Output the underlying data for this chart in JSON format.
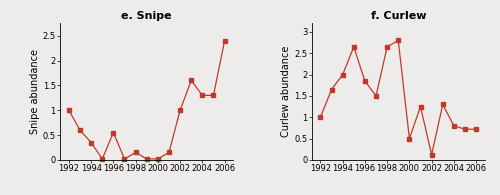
{
  "snipe": {
    "title": "e. Snipe",
    "ylabel": "Snipe abundance",
    "years": [
      1992,
      1993,
      1994,
      1995,
      1996,
      1997,
      1998,
      1999,
      2000,
      2001,
      2002,
      2003,
      2004,
      2005,
      2006
    ],
    "values": [
      1.0,
      0.6,
      0.35,
      0.02,
      0.55,
      0.02,
      0.15,
      0.02,
      0.02,
      0.15,
      1.0,
      1.6,
      1.3,
      1.3,
      2.4
    ],
    "ylim": [
      0,
      2.75
    ],
    "yticks": [
      0,
      0.5,
      1.0,
      1.5,
      2.0,
      2.5
    ]
  },
  "curlew": {
    "title": "f. Curlew",
    "ylabel": "Curlew abundance",
    "years": [
      1992,
      1993,
      1994,
      1995,
      1996,
      1997,
      1998,
      1999,
      2000,
      2001,
      2002,
      2003,
      2004,
      2005,
      2006
    ],
    "values": [
      1.0,
      1.65,
      2.0,
      2.65,
      1.85,
      1.5,
      2.65,
      2.8,
      0.5,
      1.25,
      0.12,
      1.3,
      0.8,
      0.72,
      0.72
    ],
    "ylim": [
      0,
      3.2
    ],
    "yticks": [
      0,
      0.5,
      1.0,
      1.5,
      2.0,
      2.5,
      3.0
    ]
  },
  "line_color": "#c0392b",
  "marker": "s",
  "markersize": 2.8,
  "linewidth": 0.9,
  "background_color": "#edecea",
  "xticks": [
    1992,
    1994,
    1996,
    1998,
    2000,
    2002,
    2004,
    2006
  ],
  "tick_fontsize": 6,
  "label_fontsize": 7,
  "title_fontsize": 8
}
